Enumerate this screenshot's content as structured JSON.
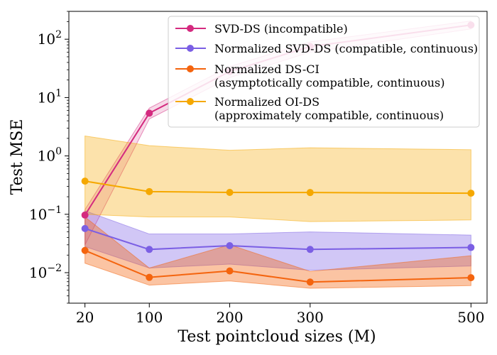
{
  "chart_data": {
    "type": "line",
    "xlabel": "Test pointcloud sizes (M)",
    "ylabel": "Test MSE",
    "yscale": "log",
    "ylim": [
      0.003,
      300
    ],
    "xlim": [
      0,
      520
    ],
    "x": [
      20,
      100,
      200,
      300,
      500
    ],
    "x_tick_labels": [
      "20",
      "100",
      "200",
      "300",
      "500"
    ],
    "y_ticks": [
      {
        "base": "10",
        "exp": "−2",
        "value": 0.01
      },
      {
        "base": "10",
        "exp": "−1",
        "value": 0.1
      },
      {
        "base": "10",
        "exp": "0",
        "value": 1
      },
      {
        "base": "10",
        "exp": "1",
        "value": 10
      },
      {
        "base": "10",
        "exp": "2",
        "value": 100
      }
    ],
    "legend_position": "top-right",
    "series": [
      {
        "name": "SVD-DS (incompatible)",
        "color": "#d42a7f",
        "values": [
          0.097,
          5.4,
          28,
          75,
          175
        ],
        "lower": [
          0.03,
          4.3,
          22,
          60,
          150
        ],
        "upper": [
          0.12,
          6.6,
          34,
          90,
          205
        ]
      },
      {
        "name": "Normalized SVD-DS (compatible, continuous)",
        "color": "#7b5fe4",
        "values": [
          0.057,
          0.025,
          0.029,
          0.025,
          0.027
        ],
        "lower": [
          0.028,
          0.012,
          0.014,
          0.011,
          0.013
        ],
        "upper": [
          0.115,
          0.046,
          0.046,
          0.05,
          0.044
        ]
      },
      {
        "name": "Normalized DS-CI",
        "name_line2": "(asymptotically compatible, continuous)",
        "color": "#f4640e",
        "values": [
          0.024,
          0.0083,
          0.0107,
          0.0069,
          0.0082
        ],
        "lower": [
          0.0145,
          0.0061,
          0.0072,
          0.0054,
          0.006
        ],
        "upper": [
          0.09,
          0.012,
          0.03,
          0.0105,
          0.0195
        ]
      },
      {
        "name": "Normalized OI-DS",
        "name_line2": "(approximately compatible, continuous)",
        "color": "#f5a800",
        "values": [
          0.37,
          0.245,
          0.237,
          0.236,
          0.23
        ],
        "lower": [
          0.1,
          0.09,
          0.09,
          0.075,
          0.08
        ],
        "upper": [
          2.2,
          1.5,
          1.25,
          1.38,
          1.28
        ]
      }
    ]
  }
}
